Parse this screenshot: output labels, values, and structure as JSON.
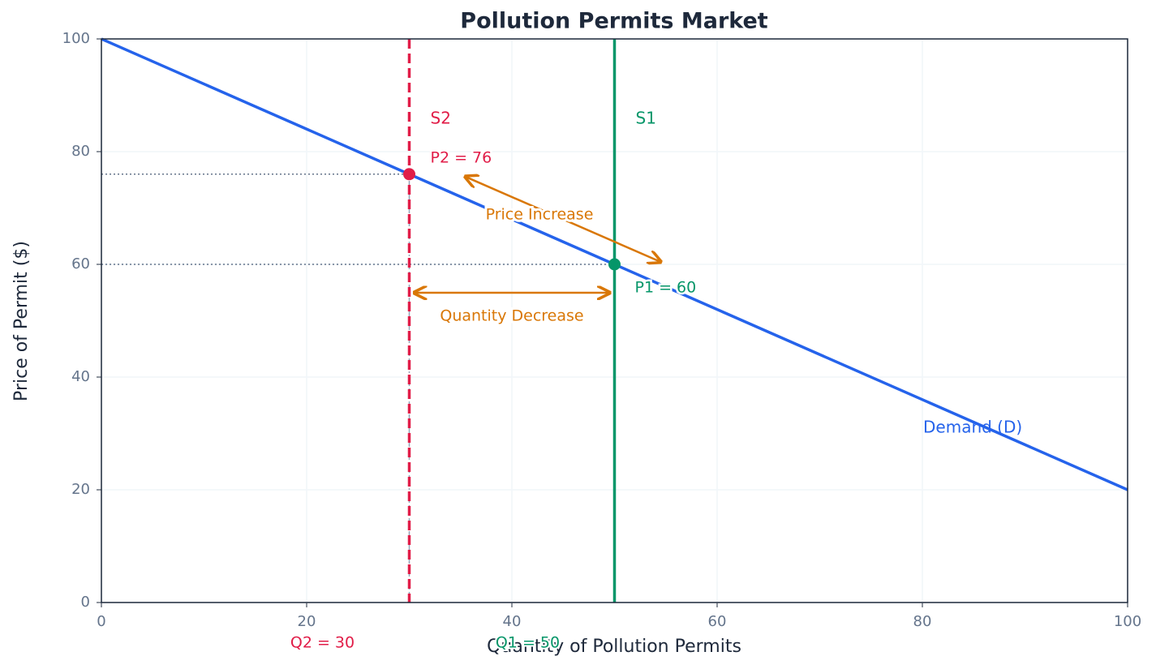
{
  "chart_data": {
    "type": "line",
    "title": "Pollution Permits Market",
    "x_label": "Quantity of Pollution Permits",
    "y_label": "Price of Permit ($)",
    "xlim": [
      0,
      100
    ],
    "ylim": [
      0,
      100
    ],
    "xticks": [
      0,
      20,
      40,
      60,
      80,
      100
    ],
    "yticks": [
      0,
      20,
      40,
      60,
      80,
      100
    ],
    "grid": true,
    "series": [
      {
        "name": "Demand (D)",
        "color": "#2563eb",
        "x": [
          0,
          100
        ],
        "values": [
          100,
          20
        ]
      }
    ],
    "supply": [
      {
        "name": "S1",
        "color": "#059669",
        "x": 50,
        "style": "solid"
      },
      {
        "name": "S2",
        "color": "#e11d48",
        "x": 30,
        "style": "dashed"
      }
    ],
    "equilibria": [
      {
        "price_label": "P1 = 60",
        "price": 60,
        "quantity_label": "Q1 = 50",
        "quantity": 50,
        "color": "#059669"
      },
      {
        "price_label": "P2 = 76",
        "price": 76,
        "quantity_label": "Q2 = 30",
        "quantity": 30,
        "color": "#e11d48"
      }
    ],
    "annotations": [
      {
        "text": "Price Increase",
        "color": "#d97706"
      },
      {
        "text": "Quantity Decrease",
        "color": "#d97706"
      }
    ]
  }
}
